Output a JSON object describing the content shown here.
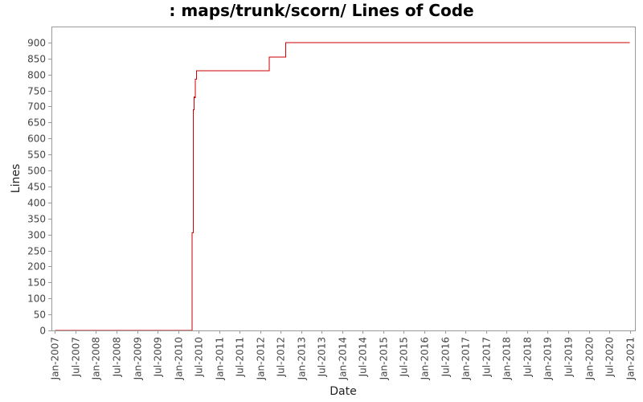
{
  "chart_data": {
    "type": "line",
    "title": ": maps/trunk/scorn/ Lines of Code",
    "xlabel": "Date",
    "ylabel": "Lines",
    "ylim": [
      0,
      950
    ],
    "xlim": [
      "2006-12-01",
      "2021-02-15"
    ],
    "y_ticks": [
      0,
      50,
      100,
      150,
      200,
      250,
      300,
      350,
      400,
      450,
      500,
      550,
      600,
      650,
      700,
      750,
      800,
      850,
      900
    ],
    "x_ticks": [
      {
        "date": "2007-01-01",
        "label": "Jan-2007"
      },
      {
        "date": "2007-07-01",
        "label": "Jul-2007"
      },
      {
        "date": "2008-01-01",
        "label": "Jan-2008"
      },
      {
        "date": "2008-07-01",
        "label": "Jul-2008"
      },
      {
        "date": "2009-01-01",
        "label": "Jan-2009"
      },
      {
        "date": "2009-07-01",
        "label": "Jul-2009"
      },
      {
        "date": "2010-01-01",
        "label": "Jan-2010"
      },
      {
        "date": "2010-07-01",
        "label": "Jul-2010"
      },
      {
        "date": "2011-01-01",
        "label": "Jan-2011"
      },
      {
        "date": "2011-07-01",
        "label": "Jul-2011"
      },
      {
        "date": "2012-01-01",
        "label": "Jan-2012"
      },
      {
        "date": "2012-07-01",
        "label": "Jul-2012"
      },
      {
        "date": "2013-01-01",
        "label": "Jan-2013"
      },
      {
        "date": "2013-07-01",
        "label": "Jul-2013"
      },
      {
        "date": "2014-01-01",
        "label": "Jan-2014"
      },
      {
        "date": "2014-07-01",
        "label": "Jul-2014"
      },
      {
        "date": "2015-01-01",
        "label": "Jan-2015"
      },
      {
        "date": "2015-07-01",
        "label": "Jul-2015"
      },
      {
        "date": "2016-01-01",
        "label": "Jan-2016"
      },
      {
        "date": "2016-07-01",
        "label": "Jul-2016"
      },
      {
        "date": "2017-01-01",
        "label": "Jan-2017"
      },
      {
        "date": "2017-07-01",
        "label": "Jul-2017"
      },
      {
        "date": "2018-01-01",
        "label": "Jan-2018"
      },
      {
        "date": "2018-07-01",
        "label": "Jul-2018"
      },
      {
        "date": "2019-01-01",
        "label": "Jan-2019"
      },
      {
        "date": "2019-07-01",
        "label": "Jul-2019"
      },
      {
        "date": "2020-01-01",
        "label": "Jan-2020"
      },
      {
        "date": "2020-07-01",
        "label": "Jul-2020"
      },
      {
        "date": "2021-01-01",
        "label": "Jan-2021"
      }
    ],
    "grid": false,
    "legend": "none",
    "series": [
      {
        "color": "#cc0000",
        "step": true,
        "points": [
          {
            "x": "2007-01-01",
            "y": 0
          },
          {
            "x": "2010-05-05",
            "y": 0
          },
          {
            "x": "2010-05-05",
            "y": 305
          },
          {
            "x": "2010-05-15",
            "y": 305
          },
          {
            "x": "2010-05-15",
            "y": 690
          },
          {
            "x": "2010-05-22",
            "y": 690
          },
          {
            "x": "2010-05-22",
            "y": 730
          },
          {
            "x": "2010-05-27",
            "y": 730
          },
          {
            "x": "2010-05-27",
            "y": 728
          },
          {
            "x": "2010-06-03",
            "y": 728
          },
          {
            "x": "2010-06-03",
            "y": 785
          },
          {
            "x": "2010-06-12",
            "y": 785
          },
          {
            "x": "2010-06-12",
            "y": 812
          },
          {
            "x": "2012-03-20",
            "y": 812
          },
          {
            "x": "2012-03-20",
            "y": 855
          },
          {
            "x": "2012-08-15",
            "y": 855
          },
          {
            "x": "2012-08-15",
            "y": 900
          },
          {
            "x": "2021-01-01",
            "y": 900
          }
        ]
      }
    ]
  }
}
